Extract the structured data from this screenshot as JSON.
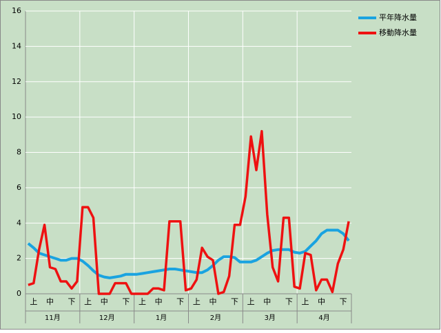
{
  "chart_data": {
    "type": "line",
    "categories": [
      null,
      "上",
      null,
      null,
      "中",
      null,
      null,
      null,
      "下",
      null,
      null,
      "上",
      null,
      null,
      "中",
      null,
      null,
      null,
      "下",
      null,
      null,
      "上",
      null,
      null,
      "中",
      null,
      null,
      null,
      "下",
      null,
      null,
      "上",
      null,
      null,
      "中",
      null,
      null,
      null,
      "下",
      null,
      null,
      "上",
      null,
      null,
      "中",
      null,
      null,
      null,
      "下",
      null,
      null,
      "上",
      null,
      null,
      "中",
      null,
      null,
      null,
      "下",
      null
    ],
    "groups": [
      "11月",
      "12月",
      "1月",
      "2月",
      "3月",
      "4月"
    ],
    "series": [
      {
        "name": "平年降水量",
        "color": "#1aa3e0",
        "values": [
          2.85,
          2.6,
          2.3,
          2.2,
          2.1,
          2.0,
          1.9,
          1.9,
          2.0,
          2.0,
          1.85,
          1.6,
          1.3,
          1.05,
          0.95,
          0.9,
          0.95,
          1.0,
          1.1,
          1.1,
          1.1,
          1.15,
          1.2,
          1.25,
          1.3,
          1.35,
          1.4,
          1.4,
          1.35,
          1.3,
          1.25,
          1.2,
          1.2,
          1.35,
          1.6,
          1.9,
          2.1,
          2.1,
          2.05,
          1.8,
          1.8,
          1.8,
          1.9,
          2.1,
          2.3,
          2.45,
          2.5,
          2.5,
          2.5,
          2.35,
          2.3,
          2.4,
          2.7,
          3.0,
          3.4,
          3.6,
          3.6,
          3.6,
          3.4,
          3.0
        ]
      },
      {
        "name": "移動降水量",
        "color": "#ee1111",
        "values": [
          0.5,
          0.6,
          2.5,
          3.9,
          1.5,
          1.4,
          0.7,
          0.7,
          0.3,
          0.7,
          4.9,
          4.9,
          4.3,
          0,
          0,
          0,
          0.6,
          0.6,
          0.6,
          0,
          0,
          0,
          0,
          0.3,
          0.3,
          0.2,
          4.1,
          4.1,
          4.1,
          0.2,
          0.3,
          0.8,
          2.6,
          2.1,
          1.9,
          0,
          0.1,
          1.0,
          3.9,
          3.9,
          5.5,
          8.9,
          7.0,
          9.2,
          4.5,
          1.5,
          0.7,
          4.3,
          4.3,
          0.4,
          0.3,
          2.3,
          2.2,
          0.2,
          0.8,
          0.8,
          0.1,
          1.7,
          2.5,
          4.1
        ]
      }
    ],
    "ylim": [
      0,
      16
    ],
    "yticks": [
      0,
      2,
      4,
      6,
      8,
      10,
      12,
      14,
      16
    ],
    "grid": true,
    "legend": "right"
  }
}
